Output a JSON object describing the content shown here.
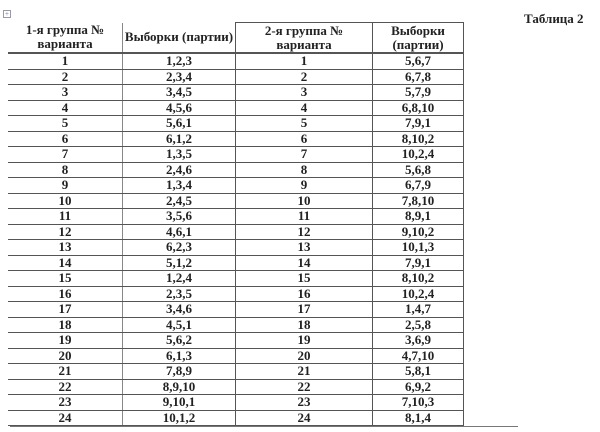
{
  "title": "Таблица 2",
  "headers": [
    "1-я группа № варианта",
    "Выборки (партии)",
    "2-я группа № варианта",
    "Выборки (партии)"
  ],
  "rows": [
    [
      "1",
      "1,2,3",
      "1",
      "5,6,7"
    ],
    [
      "2",
      "2,3,4",
      "2",
      "6,7,8"
    ],
    [
      "3",
      "3,4,5",
      "3",
      "5,7,9"
    ],
    [
      "4",
      "4,5,6",
      "4",
      "6,8,10"
    ],
    [
      "5",
      "5,6,1",
      "5",
      "7,9,1"
    ],
    [
      "6",
      "6,1,2",
      "6",
      "8,10,2"
    ],
    [
      "7",
      "1,3,5",
      "7",
      "10,2,4"
    ],
    [
      "8",
      "2,4,6",
      "8",
      "5,6,8"
    ],
    [
      "9",
      "1,3,4",
      "9",
      "6,7,9"
    ],
    [
      "10",
      "2,4,5",
      "10",
      "7,8,10"
    ],
    [
      "11",
      "3,5,6",
      "11",
      "8,9,1"
    ],
    [
      "12",
      "4,6,1",
      "12",
      "9,10,2"
    ],
    [
      "13",
      "6,2,3",
      "13",
      "10,1,3"
    ],
    [
      "14",
      "5,1,2",
      "14",
      "7,9,1"
    ],
    [
      "15",
      "1,2,4",
      "15",
      "8,10,2"
    ],
    [
      "16",
      "2,3,5",
      "16",
      "10,2,4"
    ],
    [
      "17",
      "3,4,6",
      "17",
      "1,4,7"
    ],
    [
      "18",
      "4,5,1",
      "18",
      "2,5,8"
    ],
    [
      "19",
      "5,6,2",
      "19",
      "3,6,9"
    ],
    [
      "20",
      "6,1,3",
      "20",
      "4,7,10"
    ],
    [
      "21",
      "7,8,9",
      "21",
      "5,8,1"
    ],
    [
      "22",
      "8,9,10",
      "22",
      "6,9,2"
    ],
    [
      "23",
      "9,10,1",
      "23",
      "7,10,3"
    ],
    [
      "24",
      "10,1,2",
      "24",
      "8,1,4"
    ]
  ]
}
